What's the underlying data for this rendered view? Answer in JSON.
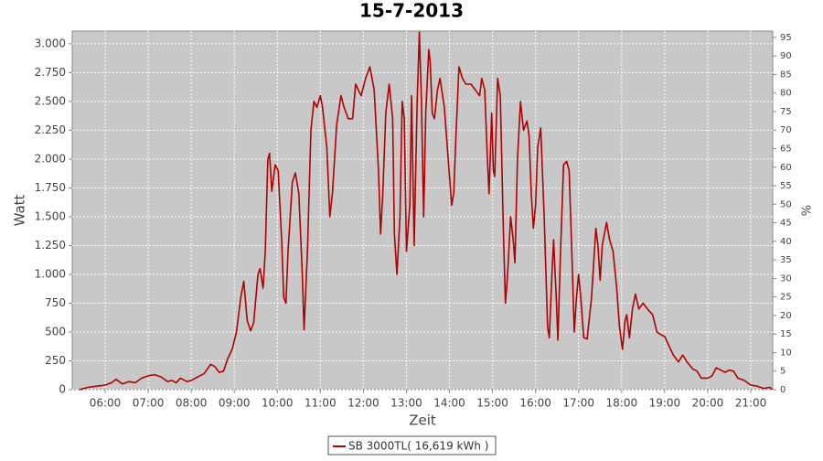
{
  "chart_data": {
    "type": "line",
    "title": "15-7-2013",
    "x_label": "Zeit",
    "y_label": "Watt",
    "y2_label": "%",
    "x": [
      5.4,
      5.6,
      5.8,
      6.0,
      6.15,
      6.25,
      6.4,
      6.55,
      6.7,
      6.85,
      7.0,
      7.15,
      7.3,
      7.45,
      7.55,
      7.65,
      7.75,
      7.9,
      8.0,
      8.15,
      8.3,
      8.45,
      8.55,
      8.65,
      8.75,
      8.85,
      8.95,
      9.05,
      9.15,
      9.22,
      9.3,
      9.38,
      9.45,
      9.55,
      9.6,
      9.67,
      9.72,
      9.78,
      9.82,
      9.87,
      9.95,
      10.02,
      10.1,
      10.15,
      10.2,
      10.25,
      10.35,
      10.42,
      10.5,
      10.58,
      10.62,
      10.7,
      10.78,
      10.85,
      10.92,
      11.0,
      11.05,
      11.15,
      11.22,
      11.28,
      11.38,
      11.48,
      11.55,
      11.65,
      11.75,
      11.82,
      11.88,
      11.95,
      12.05,
      12.15,
      12.25,
      12.35,
      12.4,
      12.45,
      12.52,
      12.6,
      12.68,
      12.72,
      12.78,
      12.85,
      12.9,
      12.95,
      13.0,
      13.08,
      13.12,
      13.18,
      13.25,
      13.3,
      13.35,
      13.4,
      13.45,
      13.52,
      13.55,
      13.6,
      13.65,
      13.72,
      13.78,
      13.88,
      13.95,
      14.05,
      14.1,
      14.15,
      14.22,
      14.3,
      14.38,
      14.5,
      14.6,
      14.7,
      14.75,
      14.82,
      14.88,
      14.92,
      14.98,
      15.02,
      15.05,
      15.12,
      15.18,
      15.25,
      15.3,
      15.35,
      15.42,
      15.48,
      15.52,
      15.58,
      15.65,
      15.72,
      15.8,
      15.85,
      15.9,
      15.95,
      16.0,
      16.05,
      16.12,
      16.2,
      16.28,
      16.32,
      16.38,
      16.42,
      16.48,
      16.52,
      16.58,
      16.65,
      16.72,
      16.78,
      16.85,
      16.9,
      16.95,
      17.0,
      17.05,
      17.12,
      17.2,
      17.3,
      17.4,
      17.45,
      17.5,
      17.55,
      17.65,
      17.72,
      17.8,
      17.88,
      17.95,
      18.02,
      18.08,
      18.12,
      18.18,
      18.25,
      18.32,
      18.4,
      18.5,
      18.6,
      18.72,
      18.82,
      18.9,
      19.0,
      19.1,
      19.2,
      19.32,
      19.42,
      19.52,
      19.65,
      19.75,
      19.85,
      20.0,
      20.1,
      20.2,
      20.3,
      20.4,
      20.5,
      20.6,
      20.7,
      20.85,
      21.0,
      21.15,
      21.3,
      21.45,
      21.5
    ],
    "series": [
      {
        "name": "SB 3000TL( 16,619 kWh )",
        "color": "#b00000",
        "values": [
          0,
          20,
          30,
          40,
          60,
          90,
          50,
          70,
          60,
          100,
          120,
          130,
          110,
          70,
          80,
          60,
          100,
          70,
          80,
          110,
          140,
          220,
          200,
          150,
          160,
          270,
          350,
          500,
          800,
          940,
          600,
          510,
          580,
          1000,
          1050,
          880,
          1200,
          2000,
          2050,
          1720,
          1950,
          1900,
          1300,
          800,
          750,
          1200,
          1800,
          1880,
          1700,
          1000,
          520,
          1200,
          2250,
          2500,
          2450,
          2550,
          2450,
          2100,
          1500,
          1700,
          2300,
          2550,
          2450,
          2350,
          2350,
          2650,
          2600,
          2550,
          2700,
          2800,
          2600,
          1900,
          1350,
          1700,
          2400,
          2650,
          2350,
          1350,
          1000,
          1500,
          2500,
          2350,
          1200,
          1600,
          2550,
          1250,
          2500,
          3100,
          2500,
          1500,
          2400,
          2950,
          2850,
          2400,
          2350,
          2600,
          2700,
          2450,
          2100,
          1600,
          1700,
          2200,
          2800,
          2700,
          2650,
          2650,
          2600,
          2550,
          2700,
          2600,
          2000,
          1700,
          2400,
          1900,
          1850,
          2700,
          2550,
          1400,
          750,
          1000,
          1500,
          1300,
          1100,
          2000,
          2500,
          2250,
          2330,
          2200,
          1700,
          1400,
          1600,
          2100,
          2270,
          1500,
          550,
          450,
          1000,
          1300,
          800,
          430,
          1200,
          1950,
          1980,
          1900,
          1100,
          500,
          800,
          1000,
          800,
          450,
          440,
          800,
          1400,
          1250,
          950,
          1250,
          1450,
          1300,
          1200,
          900,
          550,
          350,
          600,
          650,
          450,
          700,
          830,
          700,
          750,
          700,
          650,
          500,
          480,
          460,
          380,
          300,
          240,
          300,
          240,
          180,
          160,
          100,
          100,
          120,
          190,
          170,
          150,
          170,
          160,
          100,
          80,
          40,
          30,
          10,
          20,
          0
        ]
      }
    ],
    "xlim": [
      5.235,
      21.51
    ],
    "xticks": [
      {
        "value": 6,
        "label": "06:00"
      },
      {
        "value": 7,
        "label": "07:00"
      },
      {
        "value": 8,
        "label": "08:00"
      },
      {
        "value": 9,
        "label": "09:00"
      },
      {
        "value": 10,
        "label": "10:00"
      },
      {
        "value": 11,
        "label": "11:00"
      },
      {
        "value": 12,
        "label": "12:00"
      },
      {
        "value": 13,
        "label": "13:00"
      },
      {
        "value": 14,
        "label": "14:00"
      },
      {
        "value": 15,
        "label": "15:00"
      },
      {
        "value": 16,
        "label": "16:00"
      },
      {
        "value": 17,
        "label": "17:00"
      },
      {
        "value": 18,
        "label": "18:00"
      },
      {
        "value": 19,
        "label": "19:00"
      },
      {
        "value": 20,
        "label": "20:00"
      },
      {
        "value": 21,
        "label": "21:00"
      }
    ],
    "ylim": [
      0,
      3110
    ],
    "yticks": [
      0,
      250,
      500,
      750,
      {
        "value": 1000,
        "label": "1.000"
      },
      {
        "value": 1250,
        "label": "1.250"
      },
      {
        "value": 1500,
        "label": "1.500"
      },
      {
        "value": 1750,
        "label": "1.750"
      },
      {
        "value": 2000,
        "label": "2.000"
      },
      {
        "value": 2250,
        "label": "2.250"
      },
      {
        "value": 2500,
        "label": "2.500"
      },
      {
        "value": 2750,
        "label": "2.750"
      },
      {
        "value": 3000,
        "label": "3.000"
      }
    ],
    "y2lim": [
      0,
      96.7
    ],
    "y2ticks": [
      0,
      5,
      10,
      15,
      20,
      25,
      30,
      35,
      40,
      45,
      50,
      55,
      60,
      65,
      70,
      75,
      80,
      85,
      90,
      95
    ],
    "grid": true,
    "legend": "bottom"
  }
}
